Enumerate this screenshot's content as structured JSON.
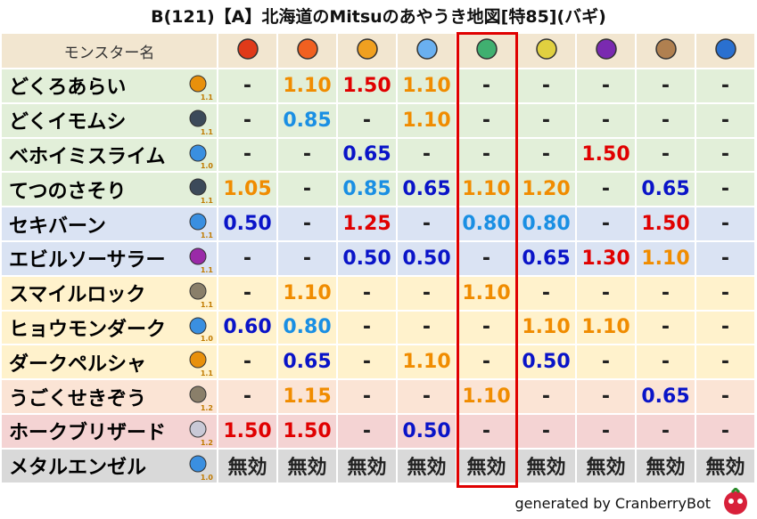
{
  "title": "B(121)【A】北海道のMitsuのあやうき地図[特85](バギ)",
  "table": {
    "header": "モンスター名",
    "palette": {
      "o": "#f08c00",
      "r": "#e00000",
      "l": "#1a8fe3",
      "d": "#0a14c8",
      "k": "#222222"
    },
    "rows": [
      {
        "name": "どくろあらい",
        "size": "1.1",
        "bg": "#e2efd9",
        "icon": "#e8900c",
        "cells": [
          "-",
          "1.10",
          "1.50",
          "1.10",
          "-",
          "-",
          "-",
          "-",
          "-"
        ],
        "colors": "korokkkkk"
      },
      {
        "name": "どくイモムシ",
        "size": "1.1",
        "bg": "#e2efd9",
        "icon": "#3c4a5a",
        "cells": [
          "-",
          "0.85",
          "-",
          "1.10",
          "-",
          "-",
          "-",
          "-",
          "-"
        ],
        "colors": "klkokkkkk"
      },
      {
        "name": "ベホイミスライム",
        "size": "1.0",
        "bg": "#e2efd9",
        "icon": "#3a8fe0",
        "cells": [
          "-",
          "-",
          "0.65",
          "-",
          "-",
          "-",
          "1.50",
          "-",
          "-"
        ],
        "colors": "kkdkkkrkk"
      },
      {
        "name": "てつのさそり",
        "size": "1.1",
        "bg": "#e2efd9",
        "icon": "#3c4a5a",
        "cells": [
          "1.05",
          "-",
          "0.85",
          "0.65",
          "1.10",
          "1.20",
          "-",
          "0.65",
          "-"
        ],
        "colors": "okldookdk"
      },
      {
        "name": "セキバーン",
        "size": "1.1",
        "bg": "#dae3f3",
        "icon": "#3a8fe0",
        "cells": [
          "0.50",
          "-",
          "1.25",
          "-",
          "0.80",
          "0.80",
          "-",
          "1.50",
          "-"
        ],
        "colors": "dkrkllkrk"
      },
      {
        "name": "エビルソーサラー",
        "size": "1.1",
        "bg": "#dae3f3",
        "icon": "#9a2aa8",
        "cells": [
          "-",
          "-",
          "0.50",
          "0.50",
          "-",
          "0.65",
          "1.30",
          "1.10",
          "-"
        ],
        "colors": "kkddkdrok"
      },
      {
        "name": "スマイルロック",
        "size": "1.1",
        "bg": "#fff2cc",
        "icon": "#8a7f6a",
        "cells": [
          "-",
          "1.10",
          "-",
          "-",
          "1.10",
          "-",
          "-",
          "-",
          "-"
        ],
        "colors": "kokkokkkk"
      },
      {
        "name": "ヒョウモンダーク",
        "size": "1.0",
        "bg": "#fff2cc",
        "icon": "#3a8fe0",
        "cells": [
          "0.60",
          "0.80",
          "-",
          "-",
          "-",
          "1.10",
          "1.10",
          "-",
          "-"
        ],
        "colors": "dlkkkookk"
      },
      {
        "name": "ダークペルシャ",
        "size": "1.1",
        "bg": "#fff2cc",
        "icon": "#e8900c",
        "cells": [
          "-",
          "0.65",
          "-",
          "1.10",
          "-",
          "0.50",
          "-",
          "-",
          "-"
        ],
        "colors": "kdkokdkkk"
      },
      {
        "name": "うごくせきぞう",
        "size": "1.2",
        "bg": "#fbe4d5",
        "icon": "#8a7f6a",
        "cells": [
          "-",
          "1.15",
          "-",
          "-",
          "1.10",
          "-",
          "-",
          "0.65",
          "-"
        ],
        "colors": "kokkokkdk"
      },
      {
        "name": "ホークブリザード",
        "size": "1.2",
        "bg": "#f4d3d3",
        "icon": "#c9c9d6",
        "cells": [
          "1.50",
          "1.50",
          "-",
          "0.50",
          "-",
          "-",
          "-",
          "-",
          "-"
        ],
        "colors": "rrkdkkkkk"
      },
      {
        "name": "メタルエンゼル",
        "size": "1.0",
        "bg": "#d9d9d9",
        "icon": "#3a8fe0",
        "cells": [
          "無効",
          "無効",
          "無効",
          "無効",
          "無効",
          "無効",
          "無効",
          "無効",
          "無効"
        ],
        "colors": "kkkkkkkkk"
      }
    ]
  },
  "footer": "generated by CranberryBot"
}
